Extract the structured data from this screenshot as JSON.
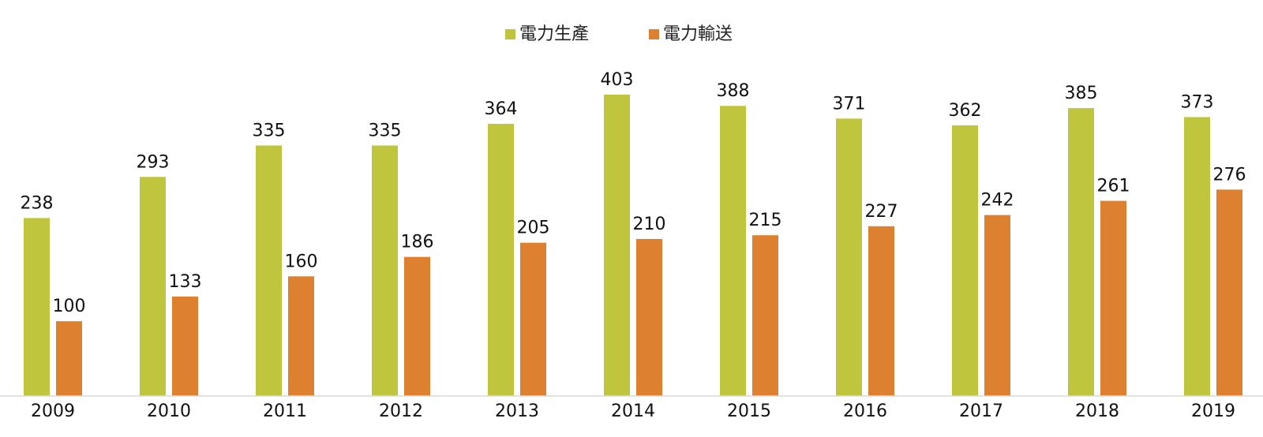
{
  "colors": {
    "production": "#BFC63E",
    "transmission": "#DD802F",
    "axis": "#D9D9D9"
  },
  "chart_data": {
    "type": "bar",
    "categories": [
      "2009",
      "2010",
      "2011",
      "2012",
      "2013",
      "2014",
      "2015",
      "2016",
      "2017",
      "2018",
      "2019"
    ],
    "series": [
      {
        "name": "電力生產",
        "values": [
          238,
          293,
          335,
          335,
          364,
          403,
          388,
          371,
          362,
          385,
          373
        ]
      },
      {
        "name": "電力輸送",
        "values": [
          100,
          133,
          160,
          186,
          205,
          210,
          215,
          227,
          242,
          261,
          276
        ]
      }
    ],
    "ylim": [
      0,
      430
    ],
    "grid": false,
    "legend": "top-center",
    "data_labels": true
  }
}
